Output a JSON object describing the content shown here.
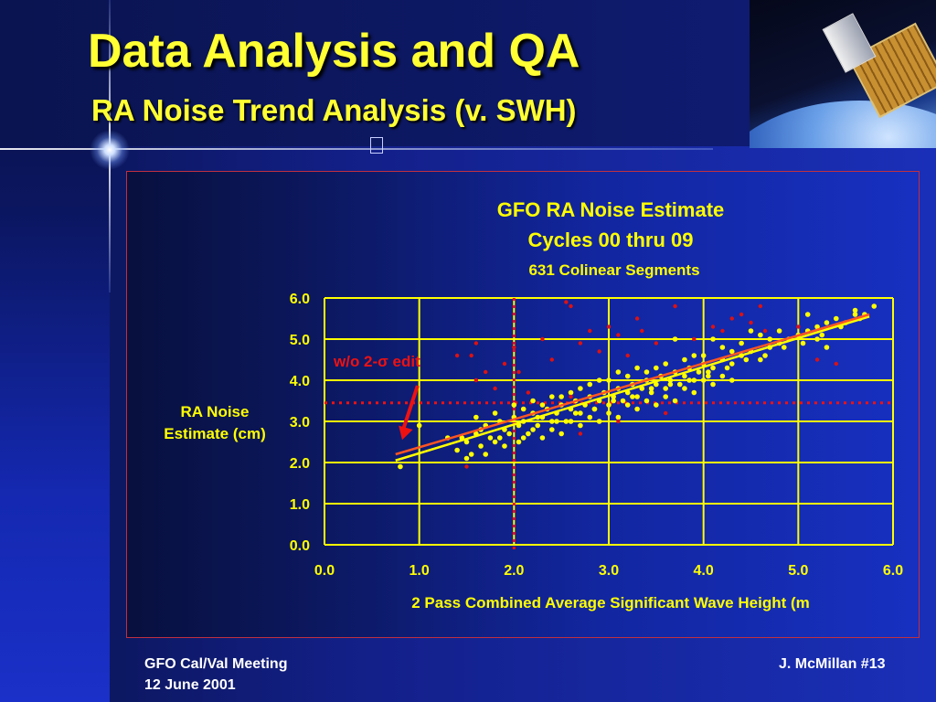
{
  "slide": {
    "title": "Data Analysis and QA",
    "subtitle": "RA Noise Trend Analysis (v. SWH)",
    "footer_left_line1": "GFO Cal/Val Meeting",
    "footer_left_line2": "12 June 2001",
    "footer_right": "J. McMillan #13",
    "colors": {
      "title": "#ffff33",
      "background": "#1428a8",
      "points": "#ffff00",
      "edited_points": "#dd1111",
      "grid": "#ffff00"
    }
  },
  "chart_data": {
    "type": "scatter",
    "title": "GFO RA Noise Estimate",
    "subtitle_line1": "Cycles 00 thru 09",
    "subtitle_line2": "631 Colinear Segments",
    "ylabel_line1": "RA Noise",
    "ylabel_line2": "Estimate (cm)",
    "xlabel": "2 Pass Combined Average Significant Wave Height (m",
    "xlim": [
      0,
      6
    ],
    "ylim": [
      0,
      6
    ],
    "x_ticks": [
      "0.0",
      "1.0",
      "2.0",
      "3.0",
      "4.0",
      "5.0",
      "6.0"
    ],
    "y_ticks": [
      "0.0",
      "1.0",
      "2.0",
      "3.0",
      "4.0",
      "5.0",
      "6.0"
    ],
    "grid": true,
    "annotation": {
      "text": "w/o 2-σ edit",
      "arrow_from": [
        0.5,
        4.0
      ],
      "arrow_to": [
        0.82,
        2.55
      ]
    },
    "threshold_lines": {
      "vertical_x": 2.0,
      "horizontal_y": 3.45
    },
    "series": [
      {
        "name": "kept",
        "color": "#ffff00",
        "points": [
          [
            0.8,
            1.9
          ],
          [
            1.0,
            2.9
          ],
          [
            1.3,
            2.6
          ],
          [
            1.4,
            2.3
          ],
          [
            1.5,
            2.5
          ],
          [
            1.55,
            2.2
          ],
          [
            1.6,
            2.7
          ],
          [
            1.65,
            2.4
          ],
          [
            1.7,
            2.9
          ],
          [
            1.75,
            2.6
          ],
          [
            1.8,
            2.5
          ],
          [
            1.85,
            3.0
          ],
          [
            1.9,
            2.8
          ],
          [
            1.95,
            2.7
          ],
          [
            2.0,
            3.1
          ],
          [
            2.05,
            2.9
          ],
          [
            2.1,
            3.0
          ],
          [
            2.15,
            2.7
          ],
          [
            2.2,
            3.2
          ],
          [
            2.25,
            2.9
          ],
          [
            2.3,
            3.1
          ],
          [
            2.35,
            3.3
          ],
          [
            2.4,
            3.0
          ],
          [
            2.45,
            3.2
          ],
          [
            2.5,
            3.4
          ],
          [
            2.55,
            3.0
          ],
          [
            2.6,
            3.3
          ],
          [
            2.65,
            3.5
          ],
          [
            2.7,
            3.2
          ],
          [
            2.75,
            3.4
          ],
          [
            2.8,
            3.6
          ],
          [
            2.85,
            3.3
          ],
          [
            2.9,
            3.5
          ],
          [
            2.95,
            3.7
          ],
          [
            3.0,
            3.4
          ],
          [
            3.05,
            3.6
          ],
          [
            3.1,
            3.8
          ],
          [
            3.15,
            3.5
          ],
          [
            3.2,
            3.7
          ],
          [
            3.25,
            3.9
          ],
          [
            3.3,
            3.6
          ],
          [
            3.35,
            3.8
          ],
          [
            3.4,
            4.0
          ],
          [
            3.45,
            3.7
          ],
          [
            3.5,
            3.9
          ],
          [
            3.55,
            4.1
          ],
          [
            3.6,
            3.8
          ],
          [
            3.65,
            4.0
          ],
          [
            3.7,
            4.2
          ],
          [
            3.75,
            3.9
          ],
          [
            3.8,
            4.1
          ],
          [
            3.85,
            4.3
          ],
          [
            3.9,
            4.0
          ],
          [
            3.95,
            4.2
          ],
          [
            4.0,
            4.4
          ],
          [
            4.05,
            4.1
          ],
          [
            4.1,
            4.3
          ],
          [
            4.2,
            4.5
          ],
          [
            4.3,
            4.4
          ],
          [
            4.4,
            4.6
          ],
          [
            4.5,
            4.7
          ],
          [
            4.6,
            4.5
          ],
          [
            4.7,
            4.8
          ],
          [
            4.8,
            4.9
          ],
          [
            4.9,
            5.0
          ],
          [
            5.0,
            5.1
          ],
          [
            5.1,
            5.2
          ],
          [
            5.2,
            5.3
          ],
          [
            5.3,
            5.4
          ],
          [
            5.4,
            5.5
          ],
          [
            5.5,
            5.4
          ],
          [
            5.6,
            5.6
          ],
          [
            5.7,
            5.6
          ],
          [
            1.5,
            2.1
          ],
          [
            1.7,
            2.2
          ],
          [
            1.9,
            2.4
          ],
          [
            2.1,
            2.6
          ],
          [
            2.2,
            2.8
          ],
          [
            2.4,
            2.8
          ],
          [
            2.6,
            3.0
          ],
          [
            2.8,
            3.1
          ],
          [
            3.0,
            3.2
          ],
          [
            3.2,
            3.4
          ],
          [
            3.4,
            3.5
          ],
          [
            3.6,
            3.6
          ],
          [
            3.8,
            3.8
          ],
          [
            4.0,
            4.0
          ],
          [
            4.2,
            4.1
          ],
          [
            1.6,
            3.1
          ],
          [
            1.8,
            3.2
          ],
          [
            2.0,
            3.4
          ],
          [
            2.2,
            3.5
          ],
          [
            2.4,
            3.6
          ],
          [
            2.6,
            3.7
          ],
          [
            2.8,
            3.9
          ],
          [
            3.0,
            4.0
          ],
          [
            3.2,
            4.1
          ],
          [
            3.4,
            4.2
          ],
          [
            3.6,
            4.4
          ],
          [
            3.8,
            4.5
          ],
          [
            4.0,
            4.6
          ],
          [
            4.2,
            4.8
          ],
          [
            4.4,
            4.9
          ],
          [
            4.6,
            5.1
          ],
          [
            4.8,
            5.2
          ],
          [
            3.7,
            5.0
          ],
          [
            4.1,
            5.0
          ],
          [
            4.5,
            5.2
          ],
          [
            5.2,
            5.0
          ],
          [
            5.3,
            4.8
          ],
          [
            2.3,
            2.6
          ],
          [
            2.5,
            2.7
          ],
          [
            2.7,
            2.9
          ],
          [
            2.9,
            3.0
          ],
          [
            3.1,
            3.1
          ],
          [
            3.3,
            3.3
          ],
          [
            3.5,
            3.4
          ],
          [
            3.7,
            3.5
          ],
          [
            3.9,
            3.7
          ],
          [
            4.1,
            3.9
          ],
          [
            4.3,
            4.0
          ],
          [
            2.1,
            3.3
          ],
          [
            2.3,
            3.4
          ],
          [
            2.5,
            3.6
          ],
          [
            2.7,
            3.8
          ],
          [
            2.9,
            4.0
          ],
          [
            3.1,
            4.2
          ],
          [
            3.3,
            4.3
          ],
          [
            3.5,
            4.3
          ],
          [
            3.9,
            4.6
          ],
          [
            4.3,
            4.7
          ],
          [
            4.7,
            5.0
          ],
          [
            1.45,
            2.6
          ],
          [
            1.65,
            2.8
          ],
          [
            1.85,
            2.6
          ],
          [
            2.05,
            2.5
          ],
          [
            2.25,
            3.1
          ],
          [
            2.45,
            3.0
          ],
          [
            2.65,
            3.2
          ],
          [
            2.85,
            3.3
          ],
          [
            3.05,
            3.5
          ],
          [
            3.25,
            3.6
          ],
          [
            3.45,
            3.8
          ],
          [
            3.65,
            3.9
          ],
          [
            3.85,
            4.0
          ],
          [
            4.05,
            4.2
          ],
          [
            4.25,
            4.3
          ],
          [
            4.45,
            4.5
          ],
          [
            4.65,
            4.6
          ],
          [
            4.85,
            4.8
          ],
          [
            5.05,
            4.9
          ],
          [
            5.25,
            5.1
          ],
          [
            5.45,
            5.3
          ],
          [
            5.65,
            5.5
          ],
          [
            5.8,
            5.8
          ],
          [
            5.6,
            5.7
          ],
          [
            5.1,
            5.6
          ]
        ]
      },
      {
        "name": "edited",
        "color": "#dd1111",
        "points": [
          [
            1.4,
            4.6
          ],
          [
            1.55,
            4.6
          ],
          [
            1.6,
            4.0
          ],
          [
            1.7,
            4.2
          ],
          [
            1.8,
            3.8
          ],
          [
            1.9,
            4.4
          ],
          [
            2.0,
            4.8
          ],
          [
            2.05,
            4.2
          ],
          [
            2.15,
            3.7
          ],
          [
            2.3,
            5.0
          ],
          [
            2.4,
            4.5
          ],
          [
            2.55,
            5.9
          ],
          [
            2.6,
            3.6
          ],
          [
            2.7,
            4.9
          ],
          [
            2.8,
            5.2
          ],
          [
            2.9,
            4.7
          ],
          [
            3.0,
            5.3
          ],
          [
            3.1,
            5.1
          ],
          [
            3.2,
            4.6
          ],
          [
            3.35,
            5.2
          ],
          [
            3.5,
            4.9
          ],
          [
            3.7,
            5.8
          ],
          [
            3.9,
            5.0
          ],
          [
            4.1,
            5.3
          ],
          [
            4.3,
            5.5
          ],
          [
            4.5,
            5.4
          ],
          [
            4.6,
            5.8
          ],
          [
            5.0,
            5.3
          ],
          [
            5.2,
            4.5
          ],
          [
            5.4,
            4.4
          ],
          [
            3.6,
            3.2
          ],
          [
            3.1,
            3.0
          ],
          [
            2.7,
            2.7
          ],
          [
            1.5,
            1.9
          ],
          [
            1.6,
            4.9
          ],
          [
            2.6,
            5.8
          ],
          [
            3.3,
            5.5
          ],
          [
            4.2,
            5.2
          ],
          [
            4.4,
            5.6
          ],
          [
            4.65,
            5.2
          ]
        ]
      }
    ],
    "trend_lines": [
      {
        "name": "kept-fit",
        "color": "#ffff00",
        "from": [
          0.75,
          2.05
        ],
        "to": [
          5.75,
          5.55
        ]
      },
      {
        "name": "unedited-fit",
        "color": "#ff5522",
        "from": [
          0.75,
          2.2
        ],
        "to": [
          5.75,
          5.6
        ]
      }
    ]
  }
}
